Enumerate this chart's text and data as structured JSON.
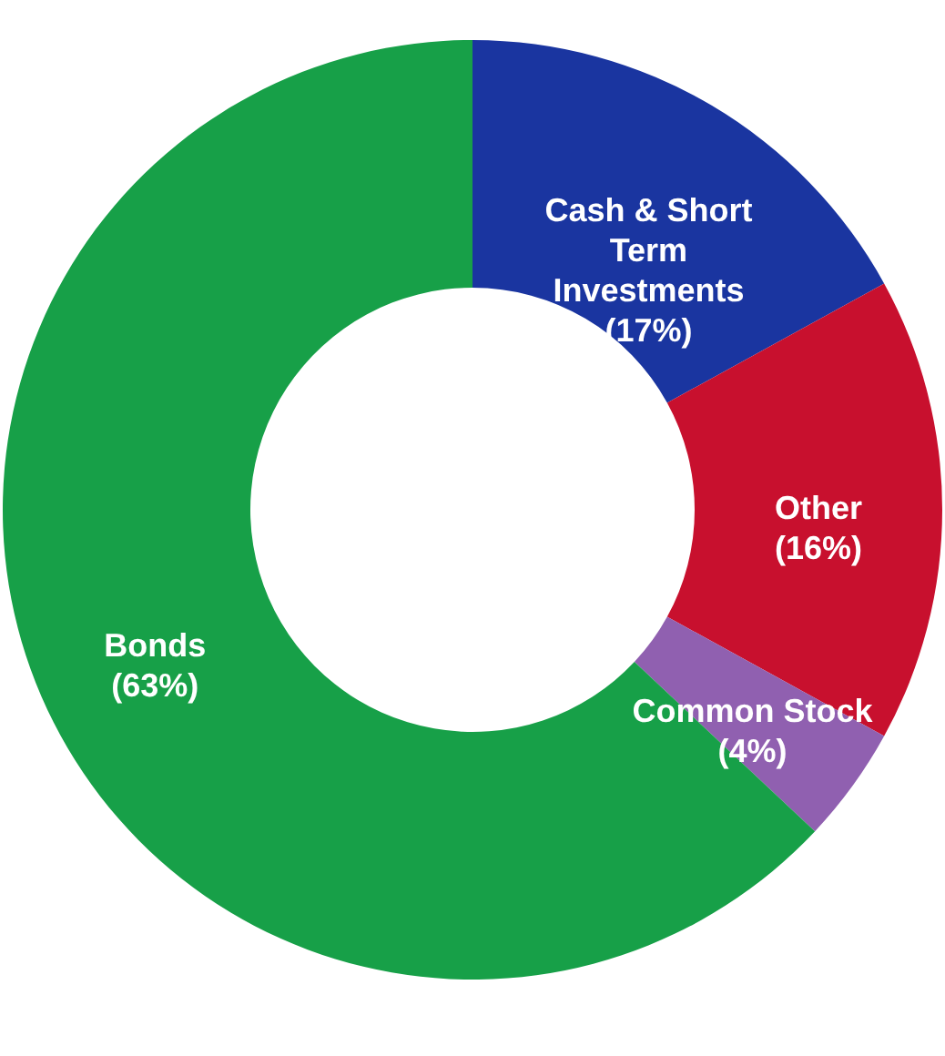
{
  "chart_data": {
    "type": "donut",
    "categories": [
      "Cash & Short Term Investments",
      "Other",
      "Common Stock",
      "Bonds"
    ],
    "values": [
      17,
      16,
      4,
      63
    ],
    "value_labels": [
      "(17%)",
      "(16%)",
      "(4%)",
      "(63%)"
    ],
    "colors": [
      "#1a35a0",
      "#c8102e",
      "#9060b0",
      "#17a048"
    ],
    "legend": false
  }
}
